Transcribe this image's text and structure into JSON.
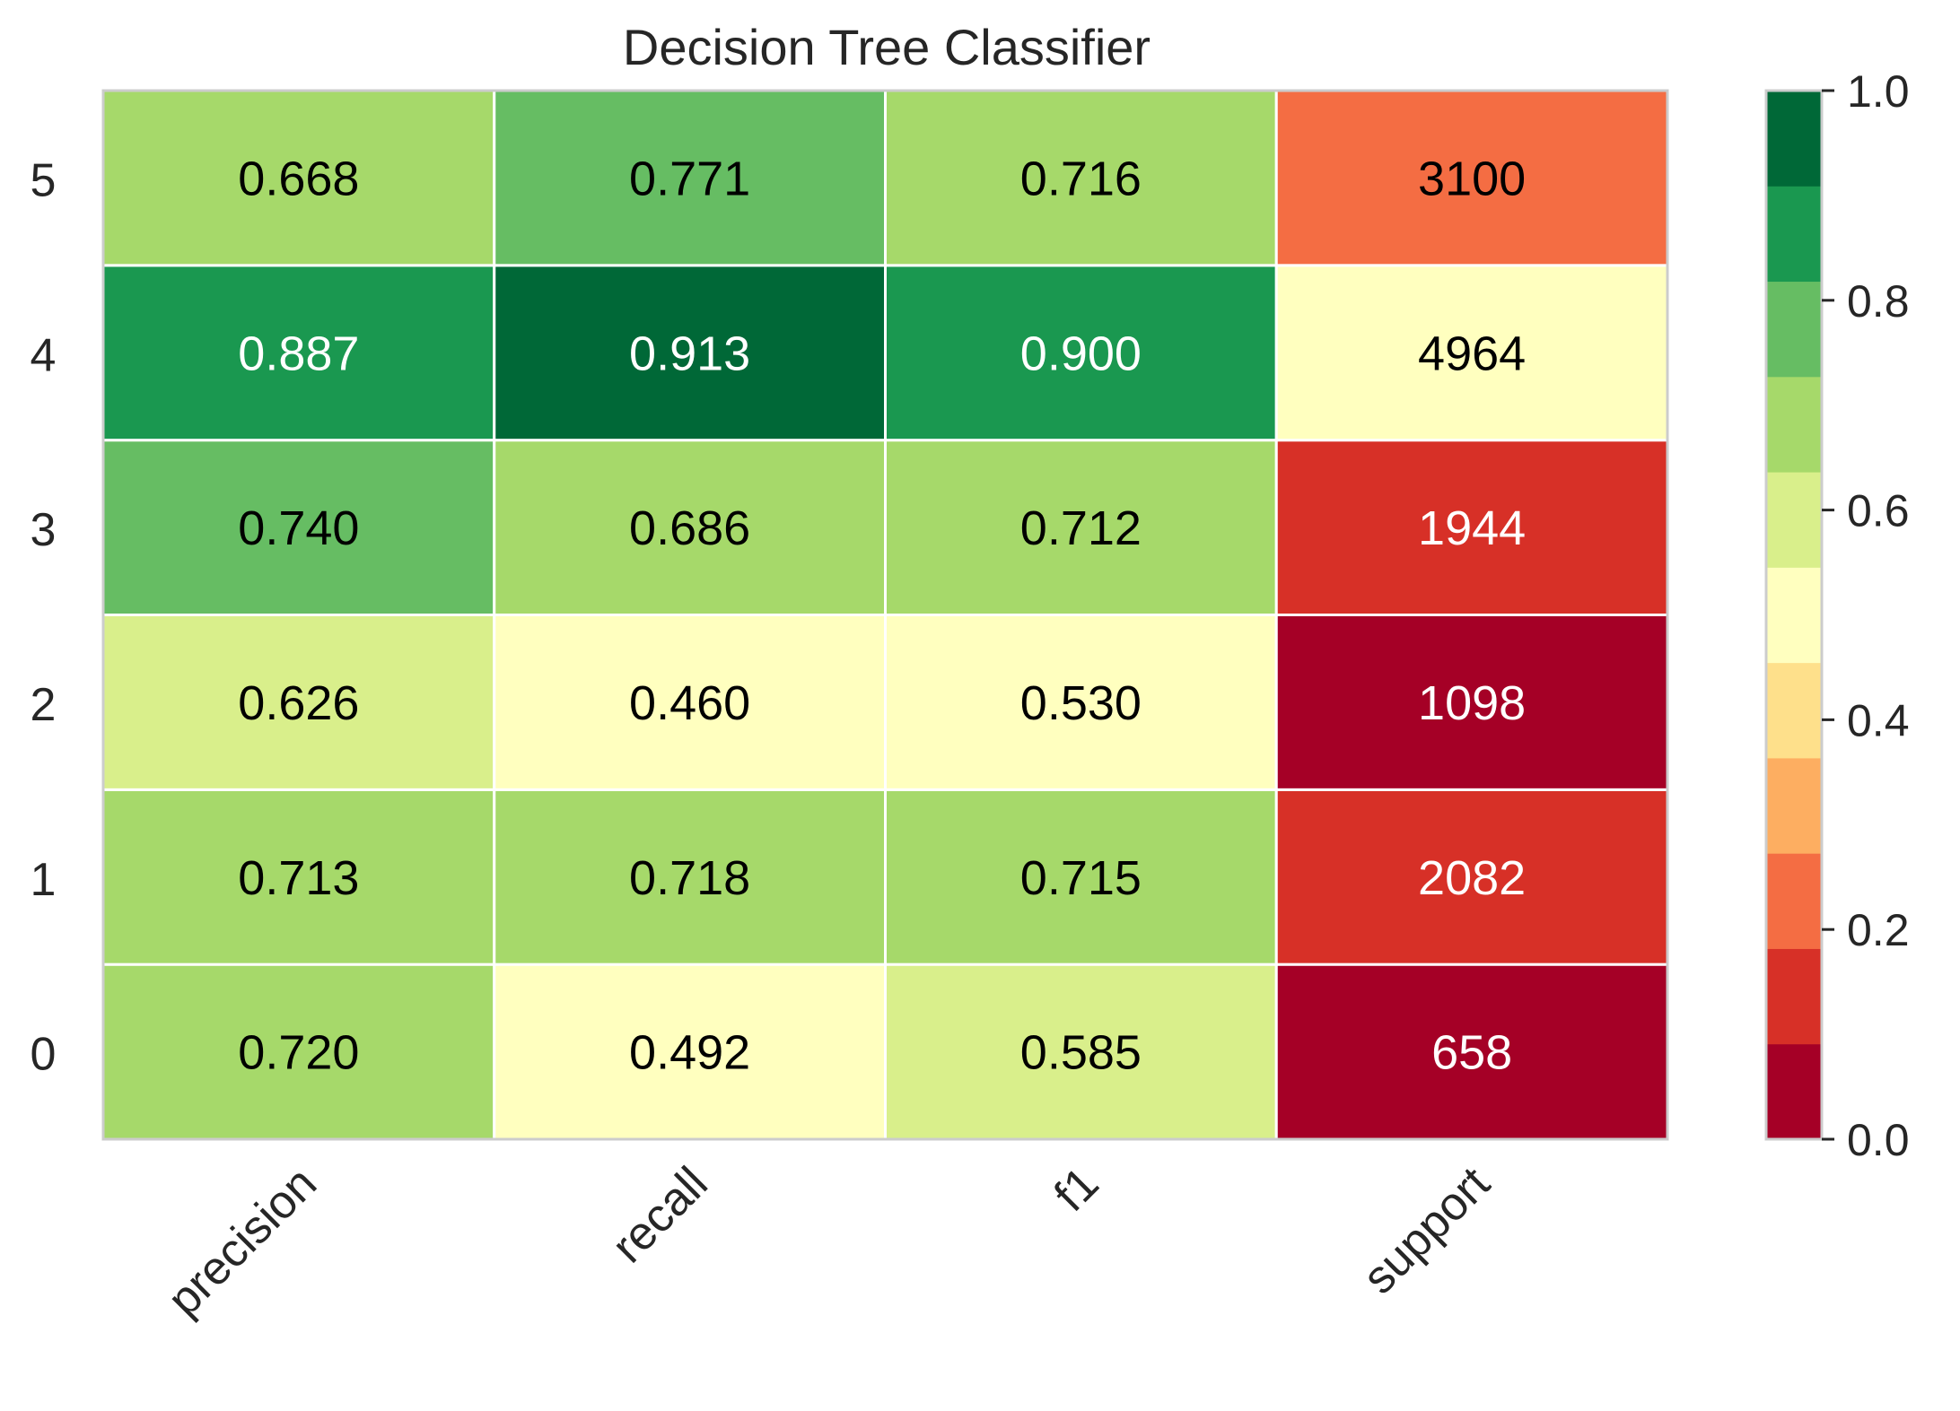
{
  "chart_data": {
    "type": "heatmap",
    "title": "Decision Tree Classifier",
    "x_categories": [
      "precision",
      "recall",
      "f1",
      "support"
    ],
    "y_categories": [
      "0",
      "1",
      "2",
      "3",
      "4",
      "5"
    ],
    "rows": [
      {
        "class": "0",
        "precision": 0.72,
        "recall": 0.492,
        "f1": 0.585,
        "support": 658
      },
      {
        "class": "1",
        "precision": 0.713,
        "recall": 0.718,
        "f1": 0.715,
        "support": 2082
      },
      {
        "class": "2",
        "precision": 0.626,
        "recall": 0.46,
        "f1": 0.53,
        "support": 1098
      },
      {
        "class": "3",
        "precision": 0.74,
        "recall": 0.686,
        "f1": 0.712,
        "support": 1944
      },
      {
        "class": "4",
        "precision": 0.887,
        "recall": 0.913,
        "f1": 0.9,
        "support": 4964
      },
      {
        "class": "5",
        "precision": 0.668,
        "recall": 0.771,
        "f1": 0.716,
        "support": 3100
      }
    ],
    "cell_text": [
      [
        "0.720",
        "0.492",
        "0.585",
        "658"
      ],
      [
        "0.713",
        "0.718",
        "0.715",
        "2082"
      ],
      [
        "0.626",
        "0.460",
        "0.530",
        "1098"
      ],
      [
        "0.740",
        "0.686",
        "0.712",
        "1944"
      ],
      [
        "0.887",
        "0.913",
        "0.900",
        "4964"
      ],
      [
        "0.668",
        "0.771",
        "0.716",
        "3100"
      ]
    ],
    "support_color_fraction": [
      0.0,
      0.181,
      0.005,
      0.108,
      0.5,
      0.245
    ],
    "colorbar": {
      "range": [
        0.0,
        1.0
      ],
      "ticks": [
        "0.0",
        "0.2",
        "0.4",
        "0.6",
        "0.8",
        "1.0"
      ],
      "colors": [
        "#a50026",
        "#d73027",
        "#f46d43",
        "#fdae61",
        "#fee08b",
        "#ffffbf",
        "#d9ef8b",
        "#a6d96a",
        "#66bd63",
        "#1a9850",
        "#006837"
      ]
    },
    "grid": false,
    "colormap": "RdYlGn"
  }
}
